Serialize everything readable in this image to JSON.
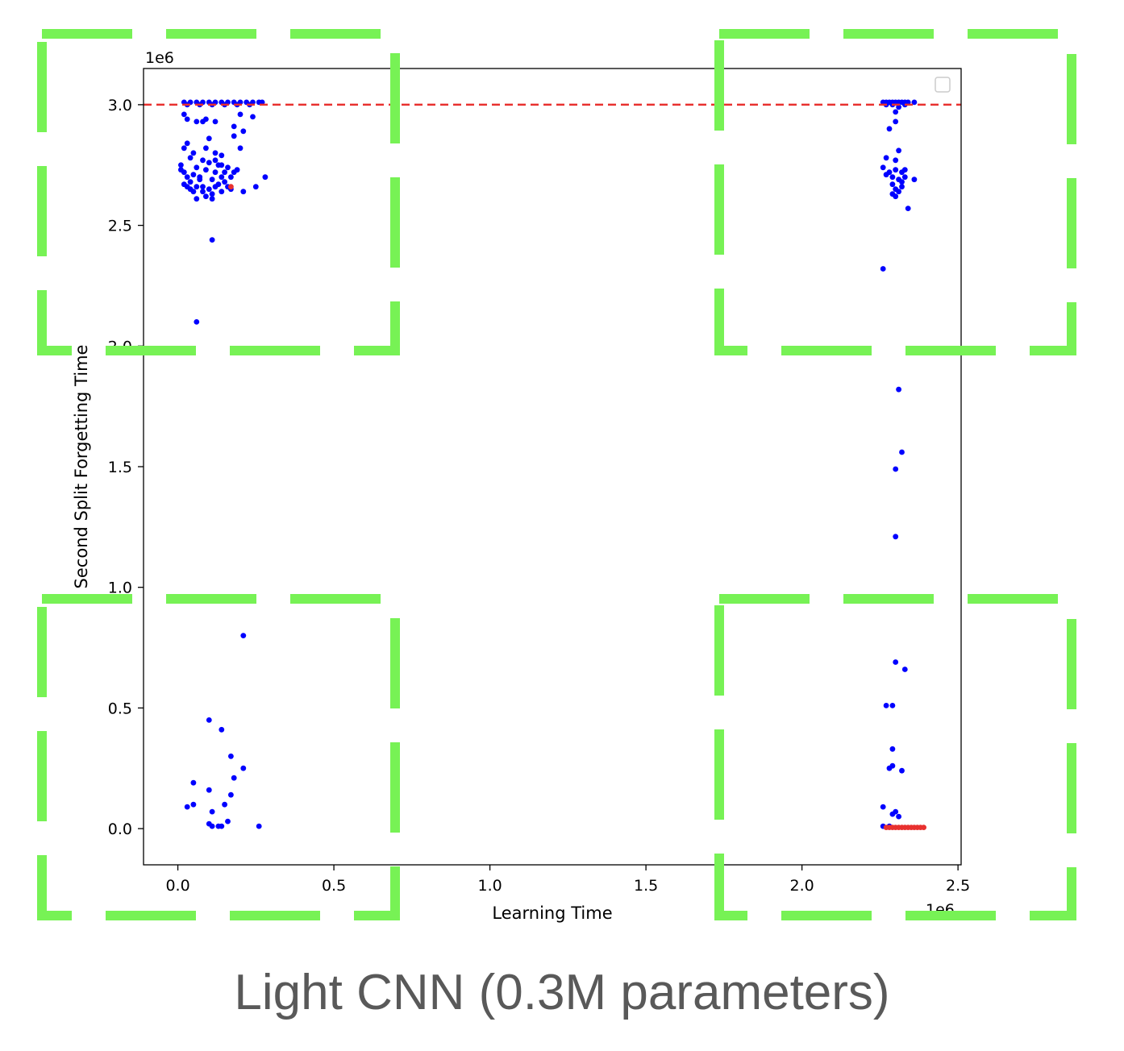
{
  "caption": "Light CNN (0.3M parameters)",
  "chart_data": {
    "type": "scatter",
    "xlabel": "Learning Time",
    "ylabel": "Second Split Forgetting Time",
    "x_offset_label": "1e6",
    "y_offset_label": "1e6",
    "xlim": [
      -0.11,
      2.51
    ],
    "ylim": [
      -0.15,
      3.15
    ],
    "x_ticks": [
      0.0,
      0.5,
      1.0,
      1.5,
      2.0,
      2.5
    ],
    "x_tick_labels": [
      "0.0",
      "0.5",
      "1.0",
      "1.5",
      "2.0",
      "2.5"
    ],
    "y_ticks": [
      0.0,
      0.5,
      1.0,
      1.5,
      2.0,
      2.5,
      3.0
    ],
    "y_tick_labels": [
      "0.0",
      "0.5",
      "1.0",
      "1.5",
      "2.0",
      "2.5",
      "3.0"
    ],
    "grid": false,
    "legend": "top-right",
    "reference_line": {
      "y": 3.0,
      "color": "#e8312f",
      "style": "dashed"
    },
    "series": [
      {
        "color": "#0000ff",
        "points": [
          [
            0.02,
            3.01
          ],
          [
            0.04,
            3.01
          ],
          [
            0.06,
            3.01
          ],
          [
            0.08,
            3.01
          ],
          [
            0.1,
            3.01
          ],
          [
            0.12,
            3.01
          ],
          [
            0.14,
            3.01
          ],
          [
            0.16,
            3.01
          ],
          [
            0.18,
            3.01
          ],
          [
            0.2,
            3.01
          ],
          [
            0.22,
            3.01
          ],
          [
            0.24,
            3.01
          ],
          [
            0.26,
            3.01
          ],
          [
            0.27,
            3.01
          ],
          [
            0.03,
            3.0
          ],
          [
            0.07,
            3.0
          ],
          [
            0.11,
            3.0
          ],
          [
            0.15,
            3.0
          ],
          [
            0.19,
            3.0
          ],
          [
            0.23,
            3.0
          ],
          [
            0.02,
            2.96
          ],
          [
            0.03,
            2.94
          ],
          [
            0.06,
            2.93
          ],
          [
            0.08,
            2.93
          ],
          [
            0.09,
            2.94
          ],
          [
            0.12,
            2.93
          ],
          [
            0.2,
            2.96
          ],
          [
            0.24,
            2.95
          ],
          [
            0.18,
            2.91
          ],
          [
            0.21,
            2.89
          ],
          [
            0.03,
            2.84
          ],
          [
            0.02,
            2.82
          ],
          [
            0.05,
            2.8
          ],
          [
            0.04,
            2.78
          ],
          [
            0.09,
            2.82
          ],
          [
            0.12,
            2.8
          ],
          [
            0.14,
            2.79
          ],
          [
            0.1,
            2.86
          ],
          [
            0.18,
            2.87
          ],
          [
            0.2,
            2.82
          ],
          [
            0.01,
            2.75
          ],
          [
            0.02,
            2.72
          ],
          [
            0.03,
            2.7
          ],
          [
            0.04,
            2.68
          ],
          [
            0.05,
            2.71
          ],
          [
            0.06,
            2.74
          ],
          [
            0.07,
            2.7
          ],
          [
            0.08,
            2.66
          ],
          [
            0.09,
            2.73
          ],
          [
            0.1,
            2.76
          ],
          [
            0.11,
            2.69
          ],
          [
            0.12,
            2.72
          ],
          [
            0.13,
            2.75
          ],
          [
            0.14,
            2.7
          ],
          [
            0.15,
            2.68
          ],
          [
            0.16,
            2.74
          ],
          [
            0.17,
            2.7
          ],
          [
            0.18,
            2.72
          ],
          [
            0.02,
            2.67
          ],
          [
            0.04,
            2.65
          ],
          [
            0.06,
            2.66
          ],
          [
            0.08,
            2.64
          ],
          [
            0.1,
            2.65
          ],
          [
            0.12,
            2.66
          ],
          [
            0.14,
            2.64
          ],
          [
            0.13,
            2.67
          ],
          [
            0.11,
            2.63
          ],
          [
            0.09,
            2.62
          ],
          [
            0.07,
            2.69
          ],
          [
            0.05,
            2.64
          ],
          [
            0.03,
            2.66
          ],
          [
            0.15,
            2.72
          ],
          [
            0.16,
            2.66
          ],
          [
            0.17,
            2.65
          ],
          [
            0.19,
            2.73
          ],
          [
            0.21,
            2.64
          ],
          [
            0.25,
            2.66
          ],
          [
            0.28,
            2.7
          ],
          [
            0.06,
            2.61
          ],
          [
            0.11,
            2.61
          ],
          [
            0.01,
            2.73
          ],
          [
            0.08,
            2.77
          ],
          [
            0.12,
            2.77
          ],
          [
            0.14,
            2.75
          ],
          [
            0.11,
            2.44
          ],
          [
            0.06,
            2.1
          ],
          [
            2.26,
            3.01
          ],
          [
            2.27,
            3.01
          ],
          [
            2.28,
            3.01
          ],
          [
            2.29,
            3.01
          ],
          [
            2.3,
            3.01
          ],
          [
            2.31,
            3.01
          ],
          [
            2.32,
            3.01
          ],
          [
            2.33,
            3.01
          ],
          [
            2.34,
            3.01
          ],
          [
            2.36,
            3.01
          ],
          [
            2.27,
            3.0
          ],
          [
            2.29,
            3.0
          ],
          [
            2.31,
            2.99
          ],
          [
            2.33,
            3.0
          ],
          [
            2.3,
            2.97
          ],
          [
            2.28,
            2.9
          ],
          [
            2.3,
            2.93
          ],
          [
            2.27,
            2.78
          ],
          [
            2.31,
            2.81
          ],
          [
            2.26,
            2.74
          ],
          [
            2.28,
            2.72
          ],
          [
            2.29,
            2.7
          ],
          [
            2.3,
            2.73
          ],
          [
            2.31,
            2.69
          ],
          [
            2.32,
            2.72
          ],
          [
            2.33,
            2.7
          ],
          [
            2.27,
            2.71
          ],
          [
            2.29,
            2.67
          ],
          [
            2.3,
            2.65
          ],
          [
            2.31,
            2.64
          ],
          [
            2.32,
            2.66
          ],
          [
            2.33,
            2.73
          ],
          [
            2.36,
            2.69
          ],
          [
            2.29,
            2.63
          ],
          [
            2.3,
            2.62
          ],
          [
            2.32,
            2.68
          ],
          [
            2.34,
            2.57
          ],
          [
            2.3,
            2.77
          ],
          [
            2.26,
            2.32
          ],
          [
            2.31,
            1.82
          ],
          [
            2.32,
            1.56
          ],
          [
            2.3,
            1.49
          ],
          [
            2.3,
            1.21
          ],
          [
            0.21,
            0.8
          ],
          [
            0.1,
            0.45
          ],
          [
            0.14,
            0.41
          ],
          [
            0.17,
            0.3
          ],
          [
            0.21,
            0.25
          ],
          [
            0.18,
            0.21
          ],
          [
            0.05,
            0.19
          ],
          [
            0.1,
            0.16
          ],
          [
            0.17,
            0.14
          ],
          [
            0.15,
            0.1
          ],
          [
            0.03,
            0.09
          ],
          [
            0.05,
            0.1
          ],
          [
            0.11,
            0.07
          ],
          [
            0.1,
            0.02
          ],
          [
            0.11,
            0.01
          ],
          [
            0.13,
            0.01
          ],
          [
            0.14,
            0.01
          ],
          [
            0.16,
            0.03
          ],
          [
            0.26,
            0.01
          ],
          [
            2.3,
            0.69
          ],
          [
            2.33,
            0.66
          ],
          [
            2.27,
            0.51
          ],
          [
            2.29,
            0.51
          ],
          [
            2.29,
            0.33
          ],
          [
            2.28,
            0.25
          ],
          [
            2.29,
            0.26
          ],
          [
            2.32,
            0.24
          ],
          [
            2.26,
            0.09
          ],
          [
            2.29,
            0.06
          ],
          [
            2.3,
            0.07
          ],
          [
            2.31,
            0.05
          ],
          [
            2.26,
            0.01
          ],
          [
            2.28,
            0.01
          ]
        ]
      },
      {
        "color": "#e8312f",
        "points": [
          [
            0.17,
            2.66
          ],
          [
            2.27,
            0.005
          ],
          [
            2.28,
            0.005
          ],
          [
            2.29,
            0.005
          ],
          [
            2.3,
            0.005
          ],
          [
            2.31,
            0.005
          ],
          [
            2.32,
            0.005
          ],
          [
            2.33,
            0.005
          ],
          [
            2.34,
            0.005
          ],
          [
            2.35,
            0.005
          ],
          [
            2.36,
            0.005
          ],
          [
            2.37,
            0.005
          ],
          [
            2.38,
            0.005
          ],
          [
            2.39,
            0.005
          ]
        ]
      }
    ]
  },
  "overlays": [
    {
      "label": "top-left-region",
      "color": "#77f255",
      "style": "dashed"
    },
    {
      "label": "top-right-region",
      "color": "#77f255",
      "style": "dashed"
    },
    {
      "label": "bottom-left-region",
      "color": "#77f255",
      "style": "dashed"
    },
    {
      "label": "bottom-right-region",
      "color": "#77f255",
      "style": "dashed"
    }
  ]
}
